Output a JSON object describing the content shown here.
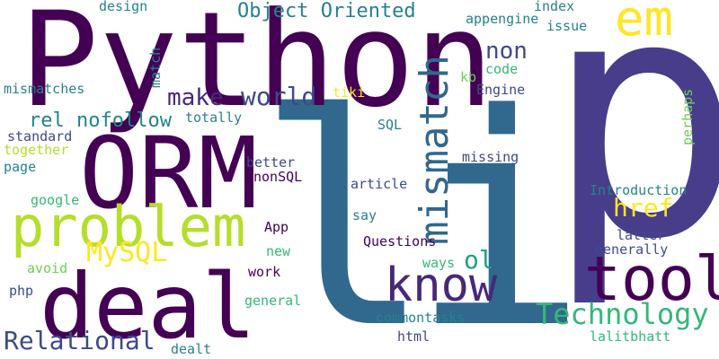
{
  "words": [
    {
      "text": "li",
      "color": "#31688e"
    },
    {
      "text": "p",
      "color": "#483d8b"
    },
    {
      "text": "Python",
      "color": "#440154"
    },
    {
      "text": "ORM",
      "color": "#440154"
    },
    {
      "text": "deal",
      "color": "#440154"
    },
    {
      "text": "problem",
      "color": "#b5de2b"
    },
    {
      "text": "tool",
      "color": "#440154"
    },
    {
      "text": "know",
      "color": "#482878"
    },
    {
      "text": "mismatch",
      "color": "#31688e"
    },
    {
      "text": "em",
      "color": "#fde725"
    },
    {
      "text": "Object Oriented",
      "color": "#26828e"
    },
    {
      "text": "make",
      "color": "#482878"
    },
    {
      "text": "world",
      "color": "#3e4a89"
    },
    {
      "text": "rel nofollow",
      "color": "#26828e"
    },
    {
      "text": "MySQL",
      "color": "#fde725"
    },
    {
      "text": "Relational",
      "color": "#3e4a89"
    },
    {
      "text": "Technology",
      "color": "#35b779"
    },
    {
      "text": "href",
      "color": "#fde725"
    },
    {
      "text": "non",
      "color": "#3e4a89"
    },
    {
      "text": "ol",
      "color": "#1f9e89"
    },
    {
      "text": "design",
      "color": "#26828e"
    },
    {
      "text": "mismatches",
      "color": "#26828e"
    },
    {
      "text": "standard",
      "color": "#3e4a89"
    },
    {
      "text": "together",
      "color": "#b5de2b"
    },
    {
      "text": "page",
      "color": "#26828e"
    },
    {
      "text": "google",
      "color": "#35b779"
    },
    {
      "text": "avoid",
      "color": "#6ece58"
    },
    {
      "text": "php",
      "color": "#3e4a89"
    },
    {
      "text": "totally",
      "color": "#26828e"
    },
    {
      "text": "match",
      "color": "#26828e"
    },
    {
      "text": "tiki",
      "color": "#fde725"
    },
    {
      "text": "better",
      "color": "#3e4a89"
    },
    {
      "text": "nonSQL",
      "color": "#440154"
    },
    {
      "text": "App",
      "color": "#440154"
    },
    {
      "text": "new",
      "color": "#35b779"
    },
    {
      "text": "work",
      "color": "#440154"
    },
    {
      "text": "general",
      "color": "#35b779"
    },
    {
      "text": "dealt",
      "color": "#26828e"
    },
    {
      "text": "SQL",
      "color": "#26828e"
    },
    {
      "text": "article",
      "color": "#3e4a89"
    },
    {
      "text": "say",
      "color": "#26828e"
    },
    {
      "text": "Questions",
      "color": "#440154"
    },
    {
      "text": "ways",
      "color": "#35b779"
    },
    {
      "text": "commontasks",
      "color": "#26828e"
    },
    {
      "text": "html",
      "color": "#3e4a89"
    },
    {
      "text": "index",
      "color": "#26828e"
    },
    {
      "text": "appengine",
      "color": "#26828e"
    },
    {
      "text": "issue",
      "color": "#26828e"
    },
    {
      "text": "kb",
      "color": "#6ece58"
    },
    {
      "text": "code",
      "color": "#35b779"
    },
    {
      "text": "Engine",
      "color": "#3e4a89"
    },
    {
      "text": "missing",
      "color": "#3e4a89"
    },
    {
      "text": "Introduction",
      "color": "#26828e"
    },
    {
      "text": "latter",
      "color": "#3e4a89"
    },
    {
      "text": "generally",
      "color": "#3e4a89"
    },
    {
      "text": "lalitbhatt",
      "color": "#35b779"
    },
    {
      "text": "perhaps",
      "color": "#6ece58"
    }
  ]
}
